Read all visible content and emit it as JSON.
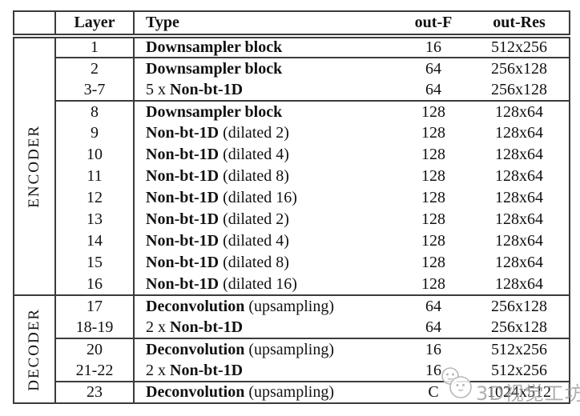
{
  "header": {
    "group": "",
    "layer": "Layer",
    "type": "Type",
    "out_f": "out-F",
    "out_res": "out-Res"
  },
  "sections": [
    {
      "label": "ENCODER",
      "blocks": [
        [
          {
            "layer": "1",
            "type": [
              {
                "b": "Downsampler block"
              }
            ],
            "out_f": "16",
            "out_res": "512x256"
          }
        ],
        [
          {
            "layer": "2",
            "type": [
              {
                "b": "Downsampler block"
              }
            ],
            "out_f": "64",
            "out_res": "256x128"
          },
          {
            "layer": "3-7",
            "type": [
              {
                "t": "5 x "
              },
              {
                "b": "Non-bt-1D"
              }
            ],
            "out_f": "64",
            "out_res": "256x128"
          }
        ],
        [
          {
            "layer": "8",
            "type": [
              {
                "b": "Downsampler block"
              }
            ],
            "out_f": "128",
            "out_res": "128x64"
          },
          {
            "layer": "9",
            "type": [
              {
                "b": "Non-bt-1D"
              },
              {
                "t": " (dilated 2)"
              }
            ],
            "out_f": "128",
            "out_res": "128x64"
          },
          {
            "layer": "10",
            "type": [
              {
                "b": "Non-bt-1D"
              },
              {
                "t": " (dilated 4)"
              }
            ],
            "out_f": "128",
            "out_res": "128x64"
          },
          {
            "layer": "11",
            "type": [
              {
                "b": "Non-bt-1D"
              },
              {
                "t": " (dilated 8)"
              }
            ],
            "out_f": "128",
            "out_res": "128x64"
          },
          {
            "layer": "12",
            "type": [
              {
                "b": "Non-bt-1D"
              },
              {
                "t": " (dilated 16)"
              }
            ],
            "out_f": "128",
            "out_res": "128x64"
          },
          {
            "layer": "13",
            "type": [
              {
                "b": "Non-bt-1D"
              },
              {
                "t": " (dilated 2)"
              }
            ],
            "out_f": "128",
            "out_res": "128x64"
          },
          {
            "layer": "14",
            "type": [
              {
                "b": "Non-bt-1D"
              },
              {
                "t": " (dilated 4)"
              }
            ],
            "out_f": "128",
            "out_res": "128x64"
          },
          {
            "layer": "15",
            "type": [
              {
                "b": "Non-bt-1D"
              },
              {
                "t": " (dilated 8)"
              }
            ],
            "out_f": "128",
            "out_res": "128x64"
          },
          {
            "layer": "16",
            "type": [
              {
                "b": "Non-bt-1D"
              },
              {
                "t": " (dilated 16)"
              }
            ],
            "out_f": "128",
            "out_res": "128x64"
          }
        ]
      ]
    },
    {
      "label": "DECODER",
      "blocks": [
        [
          {
            "layer": "17",
            "type": [
              {
                "b": "Deconvolution"
              },
              {
                "t": " (upsampling)"
              }
            ],
            "out_f": "64",
            "out_res": "256x128"
          },
          {
            "layer": "18-19",
            "type": [
              {
                "t": "2 x "
              },
              {
                "b": "Non-bt-1D"
              }
            ],
            "out_f": "64",
            "out_res": "256x128"
          }
        ],
        [
          {
            "layer": "20",
            "type": [
              {
                "b": "Deconvolution"
              },
              {
                "t": " (upsampling)"
              }
            ],
            "out_f": "16",
            "out_res": "512x256"
          },
          {
            "layer": "21-22",
            "type": [
              {
                "t": "2 x "
              },
              {
                "b": "Non-bt-1D"
              }
            ],
            "out_f": "16",
            "out_res": "512x256"
          }
        ],
        [
          {
            "layer": "23",
            "type": [
              {
                "b": "Deconvolution"
              },
              {
                "t": " (upsampling)"
              }
            ],
            "out_f": "C",
            "out_res": "1024x512"
          }
        ]
      ]
    }
  ],
  "watermark": {
    "text": "3D视觉工坊",
    "logo": "mascot-icon",
    "color": "#9c9c9c"
  },
  "colors": {
    "border": "#3b3b3b",
    "text": "#111111",
    "background": "#ffffff"
  }
}
